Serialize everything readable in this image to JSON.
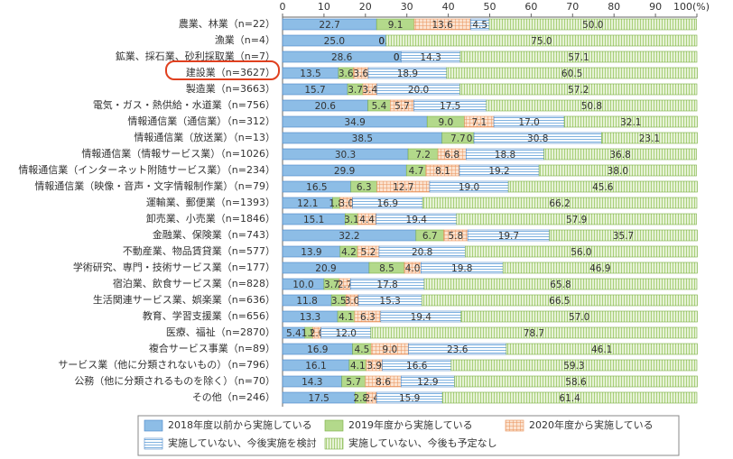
{
  "chart_data": {
    "type": "stacked-bar-horizontal",
    "categories": [
      "農業、林業（n=22）",
      "漁業（n=4）",
      "鉱業、採石業、砂利採取業（n=7）",
      "建設業（n=3627）",
      "製造業（n=3663）",
      "電気・ガス・熱供給・水道業（n=756）",
      "情報通信業（通信業）（n=312）",
      "情報通信業（放送業）（n=13）",
      "情報通信業（情報サービス業）（n=1026）",
      "情報通信業（インターネット附随サービス業）（n=234）",
      "情報通信業（映像・音声・文字情報制作業）（n=79）",
      "運輸業、郵便業（n=1393）",
      "卸売業、小売業（n=1846）",
      "金融業、保険業（n=743）",
      "不動産業、物品賃貸業（n=577）",
      "学術研究、専門・技術サービス業（n=177）",
      "宿泊業、飲食サービス業（n=828）",
      "生活関連サービス業、娯楽業（n=636）",
      "教育、学習支援業（n=656）",
      "医療、福祉（n=2870）",
      "複合サービス事業（n=89）",
      "サービス業（他に分類されないもの）（n=796）",
      "公務（他に分類されるものを除く）（n=70）",
      "その他（n=246）"
    ],
    "series": [
      {
        "name": "2018年度以前から実施している",
        "color": "#8dbde6",
        "values": [
          22.7,
          25.0,
          28.6,
          13.5,
          15.7,
          20.6,
          34.9,
          38.5,
          30.3,
          29.9,
          16.5,
          12.1,
          15.1,
          32.2,
          13.9,
          20.9,
          10.0,
          11.8,
          13.3,
          5.4,
          16.9,
          16.1,
          14.3,
          17.5
        ],
        "value_labels": [
          "22.7",
          "25.0",
          "28.6",
          "13.5",
          "15.7",
          "20.6",
          "34.9",
          "38.5",
          "30.3",
          "29.9",
          "16.5",
          "12.1",
          "15.1",
          "32.2",
          "13.9",
          "20.9",
          "10.0",
          "11.8",
          "13.3",
          "5.4",
          "16.9",
          "16.1",
          "14.3",
          "17.5"
        ]
      },
      {
        "name": "2019年度から実施している",
        "color": "#b3d98b",
        "values": [
          9.1,
          0.0,
          0.0,
          3.6,
          3.7,
          5.4,
          9.0,
          7.7,
          7.2,
          4.7,
          6.3,
          1.8,
          3.1,
          6.7,
          4.2,
          8.5,
          3.7,
          3.5,
          4.1,
          1.9,
          4.5,
          4.1,
          5.7,
          2.8
        ],
        "value_labels": [
          "9.1",
          "0.0",
          "0.0",
          "3.6",
          "3.7",
          "5.4",
          "9.0",
          "7.7",
          "7.2",
          "4.7",
          "6.3",
          "1.8",
          "3.1",
          "6.7",
          "4.2",
          "8.5",
          "3.7",
          "3.5",
          "4.1",
          "1.9",
          "4.5",
          "4.1",
          "5.7",
          "2.8"
        ]
      },
      {
        "name": "2020年度から実施している",
        "color": "#f2b48a",
        "values": [
          13.6,
          0.0,
          0.0,
          3.6,
          3.4,
          5.7,
          7.1,
          0.0,
          6.8,
          8.1,
          12.7,
          3.0,
          4.4,
          5.8,
          5.2,
          4.0,
          2.7,
          3.0,
          6.3,
          2.0,
          9.0,
          3.9,
          8.6,
          2.4
        ],
        "value_labels": [
          "13.6",
          "0.0",
          "0.0",
          "3.6",
          "3.4",
          "5.7",
          "7.1",
          "0.0",
          "6.8",
          "8.1",
          "12.7",
          "3.0",
          "4.4",
          "5.8",
          "5.2",
          "4.0",
          "2.7",
          "3.0",
          "6.3",
          "2.0",
          "9.0",
          "3.9",
          "8.6",
          "2.4"
        ]
      },
      {
        "name": "実施していない、今後実施を検討",
        "color": "#7fb2e0",
        "values": [
          4.5,
          0.0,
          14.3,
          18.9,
          20.0,
          17.5,
          17.0,
          30.8,
          18.8,
          19.2,
          19.0,
          16.9,
          19.4,
          19.7,
          20.8,
          19.8,
          17.8,
          15.3,
          19.4,
          12.0,
          23.6,
          16.6,
          12.9,
          15.9
        ],
        "value_labels": [
          "4.5",
          "0.0",
          "14.3",
          "18.9",
          "20.0",
          "17.5",
          "17.0",
          "30.8",
          "18.8",
          "19.2",
          "19.0",
          "16.9",
          "19.4",
          "19.7",
          "20.8",
          "19.8",
          "17.8",
          "15.3",
          "19.4",
          "12.0",
          "23.6",
          "16.6",
          "12.9",
          "15.9"
        ]
      },
      {
        "name": "実施していない、今後も予定なし",
        "color": "#a9d07a",
        "values": [
          50.0,
          75.0,
          57.1,
          60.5,
          57.2,
          50.8,
          32.1,
          23.1,
          36.8,
          38.0,
          45.6,
          66.2,
          57.9,
          35.7,
          56.0,
          46.9,
          65.8,
          66.5,
          57.0,
          78.7,
          46.1,
          59.3,
          58.6,
          61.4
        ],
        "value_labels": [
          "50.0",
          "75.0",
          "57.1",
          "60.5",
          "57.2",
          "50.8",
          "32.1",
          "23.1",
          "36.8",
          "38.0",
          "45.6",
          "66.2",
          "57.9",
          "35.7",
          "56.0",
          "46.9",
          "65.8",
          "66.5",
          "57.0",
          "78.7",
          "46.1",
          "59.3",
          "58.6",
          "61.4"
        ]
      }
    ],
    "xlim": [
      0,
      100
    ],
    "xticks": [
      0,
      10,
      20,
      30,
      40,
      50,
      60,
      70,
      80,
      90,
      {
        "value": 100,
        "label": "100(%)"
      }
    ]
  }
}
